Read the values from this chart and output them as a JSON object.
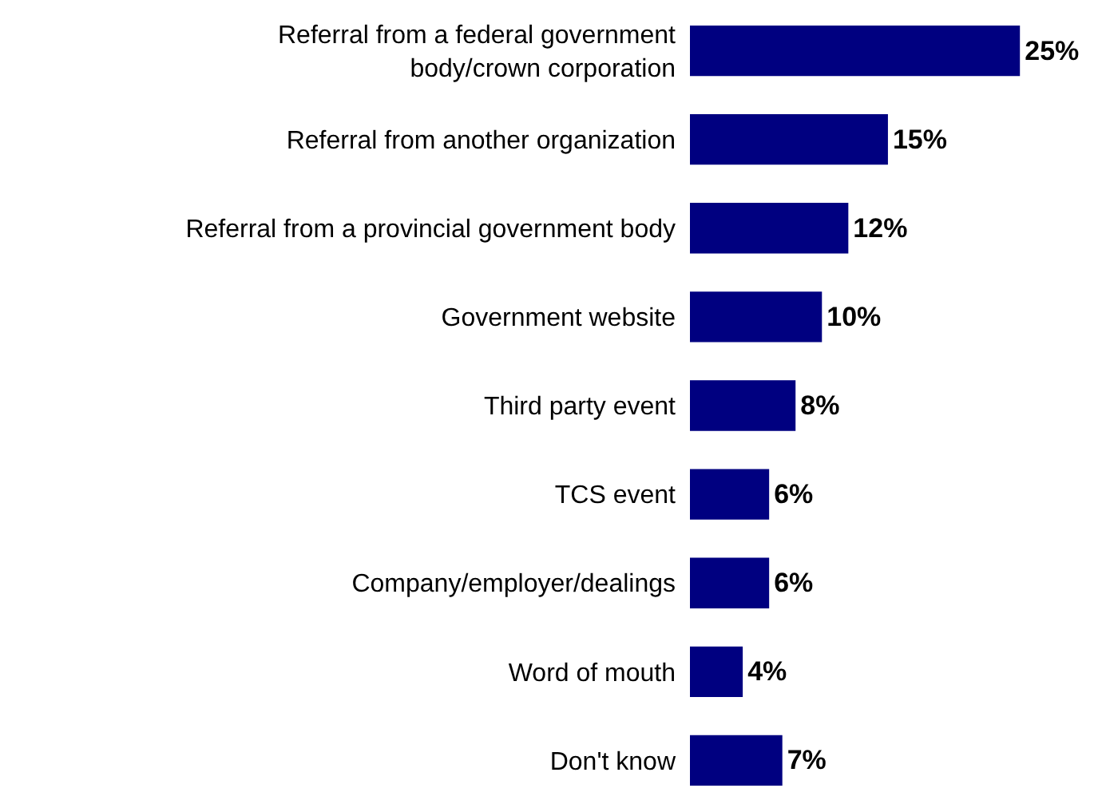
{
  "chart_data": {
    "type": "bar",
    "orientation": "horizontal",
    "categories": [
      "Referral from a federal government body/crown corporation",
      "Referral from another organization",
      "Referral from a provincial government body",
      "Government website",
      "Third party event",
      "TCS event",
      "Company/employer/dealings",
      "Word of mouth",
      "Don't know"
    ],
    "values": [
      25,
      15,
      12,
      10,
      8,
      6,
      6,
      4,
      7
    ],
    "value_labels": [
      "25%",
      "15%",
      "12%",
      "10%",
      "8%",
      "6%",
      "6%",
      "4%",
      "7%"
    ],
    "color": "#000080"
  }
}
